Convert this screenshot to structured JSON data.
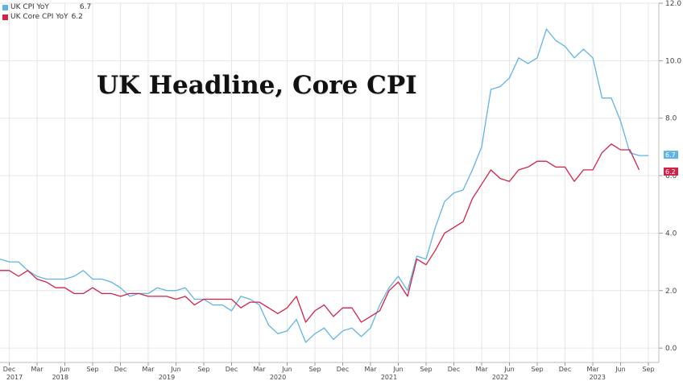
{
  "legend": {
    "items": [
      {
        "label": "UK CPI YoY",
        "value": "6.7",
        "color": "#5fb4e4"
      },
      {
        "label": "UK Core CPI YoY",
        "value": "6.2",
        "color": "#d0234a"
      }
    ]
  },
  "chart_data": {
    "type": "line",
    "title": "UK Headline, Core CPI",
    "xlabel": "",
    "ylabel": "",
    "ylim": [
      -0.5,
      12.0
    ],
    "y_ticks": [
      "0.0",
      "2.0",
      "4.0",
      "6.0",
      "8.0",
      "10.0",
      "12.0"
    ],
    "x_month_labels": [
      "Dec",
      "Mar",
      "Jun",
      "Sep",
      "Dec",
      "Mar",
      "Jun",
      "Sep",
      "Dec",
      "Mar",
      "Jun",
      "Sep",
      "Dec",
      "Mar",
      "Jun",
      "Sep",
      "Dec",
      "Mar",
      "Jun",
      "Sep",
      "Dec",
      "Mar",
      "Jun",
      "Sep"
    ],
    "x_month_index": [
      1,
      4,
      7,
      10,
      13,
      16,
      19,
      22,
      25,
      28,
      31,
      34,
      37,
      40,
      43,
      46,
      49,
      52,
      55,
      58,
      61,
      64,
      67,
      70
    ],
    "x_year_labels": [
      "2017",
      "2018",
      "2019",
      "2020",
      "2021",
      "2022",
      "2023"
    ],
    "x_year_index": [
      0,
      6.5,
      18,
      30,
      42,
      54,
      64.5
    ],
    "x_start": "2017-11",
    "grid": true,
    "legend_position": "top-left",
    "series": [
      {
        "name": "UK CPI YoY",
        "color": "#5fb4e4",
        "last_label": "6.7",
        "values": [
          3.1,
          3.0,
          3.0,
          2.7,
          2.5,
          2.4,
          2.4,
          2.4,
          2.5,
          2.7,
          2.4,
          2.4,
          2.3,
          2.1,
          1.8,
          1.9,
          1.9,
          2.1,
          2.0,
          2.0,
          2.1,
          1.7,
          1.7,
          1.5,
          1.5,
          1.3,
          1.8,
          1.7,
          1.5,
          0.8,
          0.5,
          0.6,
          1.0,
          0.2,
          0.5,
          0.7,
          0.3,
          0.6,
          0.7,
          0.4,
          0.7,
          1.5,
          2.1,
          2.5,
          2.0,
          3.2,
          3.1,
          4.2,
          5.1,
          5.4,
          5.5,
          6.2,
          7.0,
          9.0,
          9.1,
          9.4,
          10.1,
          9.9,
          10.1,
          11.1,
          10.7,
          10.5,
          10.1,
          10.4,
          10.1,
          8.7,
          8.7,
          7.9,
          6.8,
          6.7,
          6.7
        ],
        "last_value": 6.7
      },
      {
        "name": "UK Core CPI YoY",
        "color": "#d0234a",
        "values": [
          2.7,
          2.7,
          2.5,
          2.7,
          2.4,
          2.3,
          2.1,
          2.1,
          1.9,
          1.9,
          2.1,
          1.9,
          1.9,
          1.8,
          1.9,
          1.9,
          1.8,
          1.8,
          1.8,
          1.7,
          1.8,
          1.5,
          1.7,
          1.7,
          1.7,
          1.7,
          1.4,
          1.6,
          1.6,
          1.4,
          1.2,
          1.4,
          1.8,
          0.9,
          1.3,
          1.5,
          1.1,
          1.4,
          1.4,
          0.9,
          1.1,
          1.3,
          2.0,
          2.3,
          1.8,
          3.1,
          2.9,
          3.4,
          4.0,
          4.2,
          4.4,
          5.2,
          5.7,
          6.2,
          5.9,
          5.8,
          6.2,
          6.3,
          6.5,
          6.5,
          6.3,
          6.3,
          5.8,
          6.2,
          6.2,
          6.8,
          7.1,
          6.9,
          6.9,
          6.2
        ],
        "last_value": 6.2
      }
    ]
  }
}
